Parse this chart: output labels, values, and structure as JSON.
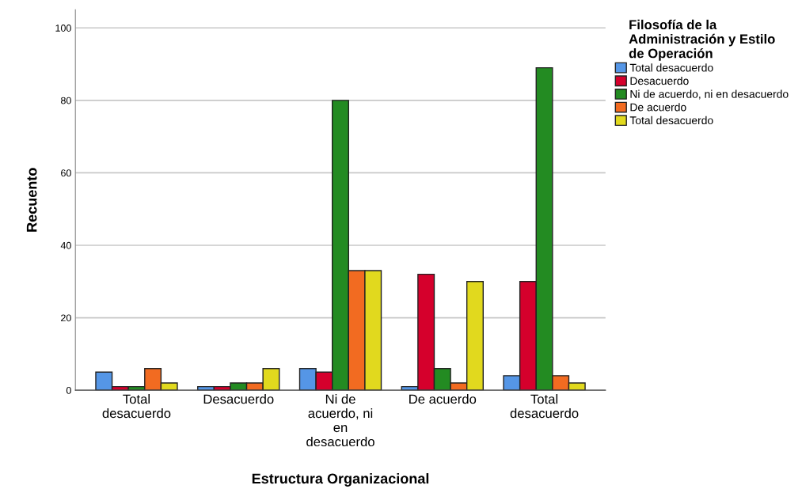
{
  "chart_data": {
    "type": "bar",
    "xlabel": "Estructura Organizacional",
    "ylabel": "Recuento",
    "legend_title": "Filosofía de la\nAdministración y Estilo\nde Operación",
    "categories": [
      "Total\ndesacuerdo",
      "Desacuerdo",
      "Ni de\nacuerdo, ni\nen\ndesacuerdo",
      "De acuerdo",
      "Total\ndesacuerdo"
    ],
    "series": [
      {
        "name": "Total desacuerdo",
        "color": "#5596e6",
        "values": [
          5,
          1,
          6,
          1,
          4
        ]
      },
      {
        "name": "Desacuerdo",
        "color": "#d5002c",
        "values": [
          1,
          1,
          5,
          32,
          30
        ]
      },
      {
        "name": "Ni de acuerdo, ni en desacuerdo",
        "color": "#238b22",
        "values": [
          1,
          2,
          80,
          6,
          89
        ]
      },
      {
        "name": "De acuerdo",
        "color": "#f26b21",
        "values": [
          6,
          2,
          33,
          2,
          4
        ]
      },
      {
        "name": "Total desacuerdo",
        "color": "#e1d91e",
        "values": [
          2,
          6,
          33,
          30,
          2
        ]
      }
    ],
    "ylim": [
      0,
      105
    ],
    "yticks": [
      0,
      20,
      40,
      60,
      80,
      100
    ],
    "grid": "y",
    "legend": "right"
  }
}
